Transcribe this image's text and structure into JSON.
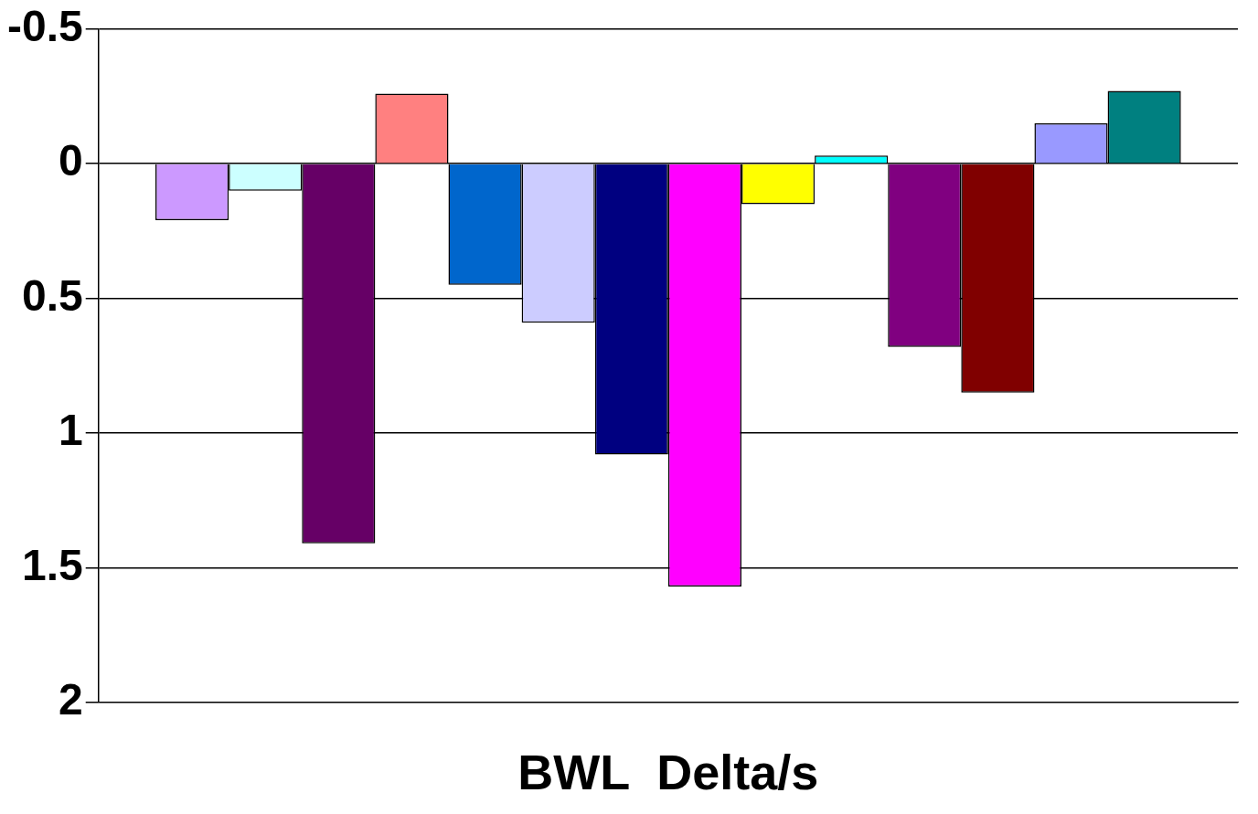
{
  "chart_data": {
    "type": "bar",
    "xlabel": "BWL  Delta/s",
    "categories": [
      null
    ],
    "series": [
      {
        "color": "#cc99ff",
        "values": [
          0.21
        ]
      },
      {
        "color": "#ccffff",
        "values": [
          0.1
        ]
      },
      {
        "color": "#660066",
        "values": [
          1.41
        ]
      },
      {
        "color": "#ff8080",
        "values": [
          -0.26
        ]
      },
      {
        "color": "#0066cc",
        "values": [
          0.45
        ]
      },
      {
        "color": "#ccccff",
        "values": [
          0.59
        ]
      },
      {
        "color": "#000080",
        "values": [
          1.08
        ]
      },
      {
        "color": "#ff00ff",
        "values": [
          1.57
        ]
      },
      {
        "color": "#ffff00",
        "values": [
          0.15
        ]
      },
      {
        "color": "#00ffff",
        "values": [
          -0.03
        ]
      },
      {
        "color": "#800080",
        "values": [
          0.68
        ]
      },
      {
        "color": "#800000",
        "values": [
          0.85
        ]
      },
      {
        "color": "#9999ff",
        "values": [
          -0.15
        ]
      },
      {
        "color": "#008080",
        "values": [
          -0.27
        ]
      }
    ],
    "ylim": [
      2,
      -0.5
    ],
    "yticks": [
      -0.5,
      0,
      0.5,
      1,
      1.5,
      2
    ],
    "grid": "y",
    "legend": false
  }
}
